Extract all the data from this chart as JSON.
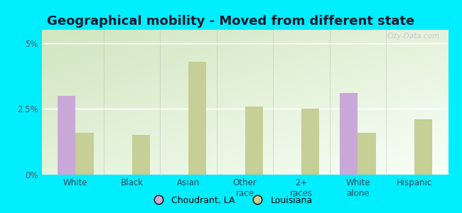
{
  "title": "Geographical mobility - Moved from different state",
  "categories": [
    "White",
    "Black",
    "Asian",
    "Other\nrace",
    "2+\nraces",
    "White\nalone",
    "Hispanic"
  ],
  "choudrant": [
    3.0,
    0.0,
    0.0,
    0.0,
    0.0,
    3.1,
    0.0
  ],
  "louisiana": [
    1.6,
    1.5,
    4.3,
    2.6,
    2.5,
    1.6,
    2.1
  ],
  "choudrant_color": "#c9a8d8",
  "louisiana_color": "#c5cf96",
  "background_outer": "#00eeff",
  "ylim": [
    0,
    5.5
  ],
  "yticks": [
    0,
    2.5,
    5
  ],
  "yticklabels": [
    "0%",
    "2.5%",
    "5%"
  ],
  "legend_choudrant": "Choudrant, LA",
  "legend_louisiana": "Louisiana",
  "bar_width": 0.32,
  "title_fontsize": 13,
  "watermark": "City-Data.com"
}
